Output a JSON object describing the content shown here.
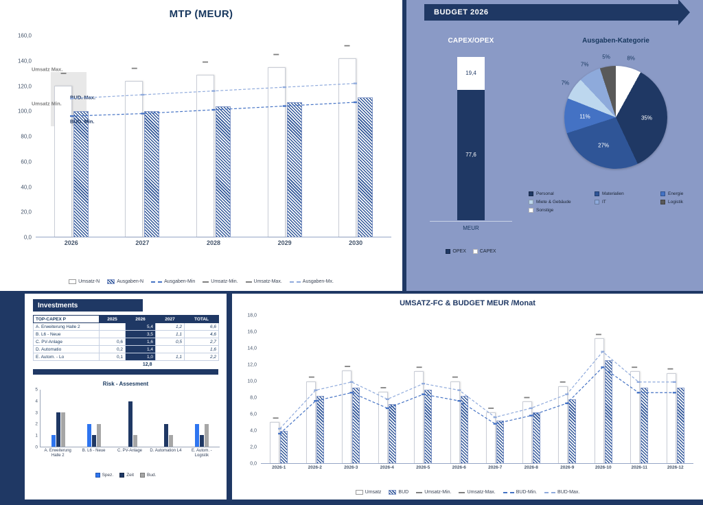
{
  "mtp": {
    "title": "MTP (MEUR)"
  },
  "budget": {
    "banner": "BUDGET 2026",
    "capex_title": "CAPEX/OPEX",
    "capex_axis_label": "MEUR",
    "pie_title": "Ausgaben-Kategorie"
  },
  "investments": {
    "title": "Investments",
    "risk_title": "Risk - Assesment"
  },
  "monthly": {
    "title": "UMSATZ-FC & BUDGET MEUR /Monat"
  },
  "chart_data": [
    {
      "id": "mtp",
      "type": "bar",
      "title": "MTP (MEUR)",
      "categories": [
        "2026",
        "2027",
        "2028",
        "2029",
        "2030"
      ],
      "series": [
        {
          "name": "Umsatz-N",
          "style": "white",
          "values": [
            120.0,
            124.0,
            129.0,
            135.0,
            142.0
          ]
        },
        {
          "name": "Ausgaben-N",
          "style": "hatch",
          "values": [
            100.0,
            100.0,
            104.0,
            107.0,
            111.0
          ]
        }
      ],
      "lines": [
        {
          "name": "Ausgaben-Min",
          "color": "#4472C4",
          "values": [
            96.0,
            98.0,
            101.0,
            104.0,
            107.0
          ]
        },
        {
          "name": "Ausgaben-Mx.",
          "color": "#8FAADC",
          "values": [
            110.0,
            113.0,
            116.0,
            119.0,
            122.0
          ]
        }
      ],
      "marker_series": [
        {
          "name": "Umsatz-Max.",
          "color": "#7F7F7F",
          "values": [
            130.0,
            134.0,
            139.0,
            145.0,
            152.0
          ]
        }
      ],
      "bands": [
        {
          "ci": 0,
          "from": 88.0,
          "to": 131.0,
          "w": 52,
          "dx": -30
        }
      ],
      "annotations": [
        {
          "text": "Umsatz Max.",
          "value": 133,
          "dx": -6,
          "color": "#7F7F7F",
          "bold": true
        },
        {
          "text": "Umsatz Min.",
          "value": 106,
          "dx": -6,
          "color": "#7F7F7F",
          "bold": true
        },
        {
          "text": "BUD. Max.",
          "value": 111,
          "dx": 50,
          "color": "#1F3864",
          "bold": true
        },
        {
          "text": "BUD. Min.",
          "value": 92,
          "dx": 50,
          "color": "#1F3864",
          "bold": true
        }
      ],
      "ylim": [
        0,
        160
      ],
      "step": 20,
      "decimals": 1,
      "legend": [
        {
          "label": "Umsatz-N",
          "swatch": "white-bar"
        },
        {
          "label": "Ausgaben-N",
          "swatch": "hatch-bar"
        },
        {
          "label": "Ausgaben-Min",
          "swatch": "dash-line-dark"
        },
        {
          "label": "Umsatz-Min.",
          "swatch": "tick"
        },
        {
          "label": "Umsatz-Max.",
          "swatch": "tick"
        },
        {
          "label": "Ausgaben-Mx.",
          "swatch": "dash-line-light"
        }
      ]
    },
    {
      "id": "capex_opex",
      "type": "stacked-bar",
      "title": "CAPEX/OPEX",
      "category": "MEUR",
      "segments": [
        {
          "name": "CAPEX",
          "value": 19.4,
          "label": "19,4",
          "color": "#FFFFFF",
          "text": "#1F3864"
        },
        {
          "name": "OPEX",
          "value": 77.6,
          "label": "77,6",
          "color": "#1F3864",
          "text": "#FFFFFF"
        }
      ],
      "legend": [
        {
          "label": "OPEX",
          "color": "#1F3864"
        },
        {
          "label": "CAPEX",
          "color": "#FFFFFF"
        }
      ]
    },
    {
      "id": "ausgaben_kategorie",
      "type": "pie",
      "title": "Ausgaben-Kategorie",
      "slices": [
        {
          "label": "Sonstige",
          "value": 8,
          "color": "#FFFFFF",
          "label_pos": "outside"
        },
        {
          "label": "Personal",
          "value": 35,
          "color": "#1F3864",
          "label_pos": "inside"
        },
        {
          "label": "Materialien",
          "value": 27,
          "color": "#2F5597",
          "label_pos": "inside"
        },
        {
          "label": "Energie",
          "value": 11,
          "color": "#4472C4",
          "label_pos": "inside"
        },
        {
          "label": "Miete & Gebäude",
          "value": 7,
          "color": "#BDD7EE",
          "label_pos": "outside"
        },
        {
          "label": "IT",
          "value": 7,
          "color": "#8EAADB",
          "label_pos": "outside"
        },
        {
          "label": "Logistik",
          "value": 5,
          "color": "#595959",
          "label_pos": "outside"
        }
      ],
      "legend_order": [
        "Personal",
        "Materialien",
        "Energie",
        "Miete & Gebäude",
        "IT",
        "Logistik",
        "Sonstige"
      ]
    },
    {
      "id": "top_capex_table",
      "type": "table",
      "columns": [
        "TOP-CAPEX P",
        "2025",
        "2026",
        "2027",
        "TOTAL"
      ],
      "rows": [
        [
          "A. Erweiterung Halle 2",
          "",
          "5,4",
          "1,2",
          "6,6"
        ],
        [
          "B. L6 - Neue",
          "",
          "3,5",
          "1,1",
          "4,6"
        ],
        [
          "C. PV-Anlage",
          "0,6",
          "1,6",
          "0,5",
          "2,7"
        ],
        [
          "D. Automatio",
          "0,2",
          "1,4",
          "",
          "1,6"
        ],
        [
          "E. Autom. - Lo",
          "0,1",
          "1,0",
          "1,1",
          "2,2"
        ]
      ],
      "total_row": [
        "",
        "",
        "12,8",
        "",
        ""
      ]
    },
    {
      "id": "risk_assessment",
      "type": "bar",
      "title": "Risk - Assesment",
      "categories": [
        "A. Erweiterung Halle 2",
        "B. L6 - Neue",
        "C. PV-Anlage",
        "D. Automation L4",
        "E. Autom. - Logistik"
      ],
      "series": [
        {
          "name": "Spez.",
          "color": "#2E75F0",
          "values": [
            1,
            2,
            0,
            0,
            2
          ]
        },
        {
          "name": "Zeit",
          "color": "#1F3864",
          "values": [
            3,
            1,
            4,
            2,
            1
          ]
        },
        {
          "name": "Bud.",
          "color": "#A6A6A6",
          "values": [
            3,
            2,
            1,
            1,
            2
          ]
        }
      ],
      "ylim": [
        0,
        5
      ],
      "step": 1,
      "decimals": 0
    },
    {
      "id": "umsatz_budget_monat",
      "type": "bar",
      "title": "UMSATZ-FC & BUDGET MEUR /Monat",
      "categories": [
        "2026-1",
        "2026-2",
        "2026-3",
        "2026-4",
        "2026-5",
        "2026-6",
        "2026-7",
        "2026-8",
        "2026-9",
        "2026-10",
        "2026-11",
        "2026-12"
      ],
      "series": [
        {
          "name": "Umsatz",
          "style": "white",
          "values": [
            5.0,
            10.0,
            11.3,
            8.7,
            11.2,
            10.0,
            6.2,
            7.5,
            9.4,
            15.2,
            11.2,
            11.0
          ]
        },
        {
          "name": "BUD",
          "style": "hatch",
          "values": [
            3.9,
            8.2,
            9.2,
            7.2,
            9.0,
            8.2,
            5.2,
            6.2,
            7.8,
            12.6,
            9.2,
            9.2
          ]
        }
      ],
      "lines": [
        {
          "name": "BUD-Min.",
          "color": "#4472C4",
          "values": [
            3.6,
            7.6,
            8.6,
            6.7,
            8.4,
            7.6,
            4.8,
            5.8,
            7.3,
            11.7,
            8.6,
            8.6
          ]
        },
        {
          "name": "BUD-Max.",
          "color": "#8FAADC",
          "values": [
            4.2,
            8.9,
            9.9,
            7.8,
            9.7,
            8.9,
            5.6,
            6.7,
            8.4,
            13.6,
            9.9,
            9.9
          ]
        }
      ],
      "marker_series": [
        {
          "name": "Umsatz-Max.",
          "color": "#7F7F7F",
          "values": [
            5.5,
            10.5,
            11.8,
            9.2,
            11.7,
            10.5,
            6.7,
            8.0,
            9.9,
            15.7,
            11.7,
            11.5
          ]
        }
      ],
      "ylim": [
        0,
        18
      ],
      "step": 2,
      "decimals": 1,
      "legend": [
        {
          "label": "Umsatz",
          "swatch": "white-bar"
        },
        {
          "label": "BUD",
          "swatch": "hatch-bar"
        },
        {
          "label": "Umsatz-Min.",
          "swatch": "tick"
        },
        {
          "label": "Umsatz-Max.",
          "swatch": "tick"
        },
        {
          "label": "BUD-Min.",
          "swatch": "dash-line-dark"
        },
        {
          "label": "BUD-Max.",
          "swatch": "dash-line-light"
        }
      ]
    }
  ]
}
